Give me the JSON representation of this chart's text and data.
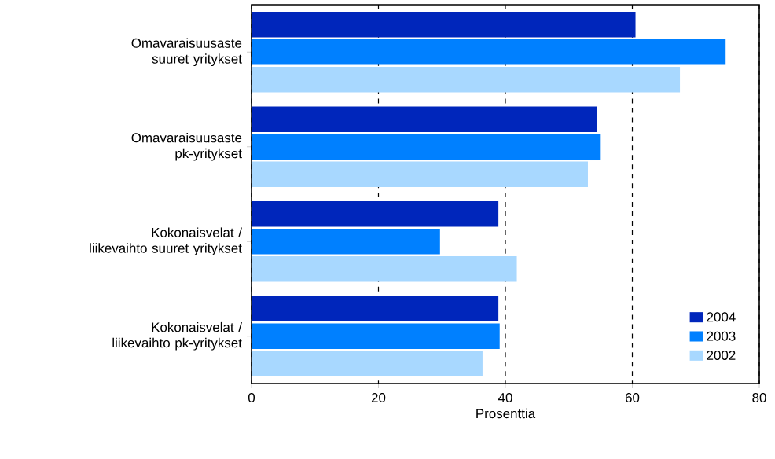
{
  "chart_data": {
    "type": "bar",
    "orientation": "horizontal",
    "xlabel": "Prosenttia",
    "categories": [
      "Omavaraisuusaste suuret yritykset",
      "Omavaraisuusaste pk-yritykset",
      "Kokonaisvelat / liikevaihto suuret yritykset",
      "Kokonaisvelat / liikevaihto pk-yritykset"
    ],
    "series": [
      {
        "name": "2004",
        "color": "#0026bb",
        "values": [
          60.5,
          54.4,
          38.9,
          38.9
        ]
      },
      {
        "name": "2003",
        "color": "#0080ff",
        "values": [
          74.7,
          54.9,
          29.7,
          39.1
        ]
      },
      {
        "name": "2002",
        "color": "#a8d8ff",
        "values": [
          67.5,
          53.0,
          41.8,
          36.4
        ]
      }
    ],
    "xlim": [
      0,
      80
    ],
    "xticks": [
      0,
      20,
      40,
      60,
      80
    ],
    "grid": "x",
    "legend": "bottom right"
  }
}
